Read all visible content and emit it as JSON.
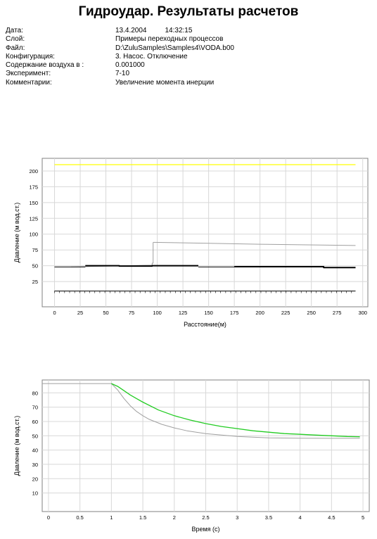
{
  "header": {
    "title": "Гидроудар. Результаты расчетов",
    "fields": [
      {
        "label": "Дата:",
        "value": "13.4.2004",
        "extra": "14:32:15"
      },
      {
        "label": "Слой:",
        "value": "Примеры переходных процессов"
      },
      {
        "label": "Файл:",
        "value": "D:\\ZuluSamples\\Samples4\\VODA.b00"
      },
      {
        "label": "Конфигурация:",
        "value": "3. Насос. Отключение"
      },
      {
        "label": "Содержание воздуха в :",
        "value": "0.001000"
      },
      {
        "label": "Эксперимент:",
        "value": "7-10"
      },
      {
        "label": "Комментарии:",
        "value": "Увеличение момента инерции"
      }
    ]
  },
  "chart_data": [
    {
      "type": "line",
      "xlabel": "Расстояние(м)",
      "ylabel": "Давление (м вод.ст.)",
      "xlim": [
        -12,
        305
      ],
      "ylim": [
        -15,
        220
      ],
      "xticks": [
        0,
        25,
        50,
        75,
        100,
        125,
        150,
        175,
        200,
        225,
        250,
        275,
        300
      ],
      "yticks": [
        25,
        50,
        75,
        100,
        125,
        150,
        175,
        200
      ],
      "grid": true,
      "series": [
        {
          "color": "#ffff00",
          "width": 1.2,
          "points": [
            [
              0,
              210
            ],
            [
              293,
              210
            ]
          ]
        },
        {
          "color": "#a0a0a0",
          "width": 1,
          "points": [
            [
              96,
              87
            ],
            [
              150,
              85.5
            ],
            [
              200,
              84
            ],
            [
              293,
              82
            ]
          ]
        },
        {
          "color": "#a0a0a0",
          "width": 1,
          "points": [
            [
              16,
              48
            ],
            [
              95,
              51
            ],
            [
              95,
              54
            ],
            [
              96,
              54
            ],
            [
              96,
              87
            ]
          ]
        },
        {
          "color": "#000000",
          "width": 1,
          "points": [
            [
              0,
              48
            ],
            [
              30,
              48
            ]
          ]
        },
        {
          "color": "#000000",
          "width": 2,
          "points": [
            [
              30,
              50
            ],
            [
              63,
              50
            ],
            [
              63,
              49.5
            ],
            [
              95,
              49.5
            ],
            [
              95,
              50
            ],
            [
              140,
              50
            ]
          ]
        },
        {
          "color": "#000000",
          "width": 1,
          "points": [
            [
              140,
              48
            ],
            [
              175,
              48
            ]
          ]
        },
        {
          "color": "#000000",
          "width": 2,
          "points": [
            [
              175,
              48.5
            ],
            [
              262,
              48.5
            ],
            [
              262,
              47
            ],
            [
              293,
              47
            ]
          ]
        },
        {
          "color": "#000000",
          "width": 1,
          "points": [
            [
              0,
              10
            ],
            [
              293,
              10
            ]
          ]
        }
      ],
      "ground_ticks": {
        "y": 10,
        "from": 0,
        "to": 293,
        "step": 4.9
      }
    },
    {
      "type": "line",
      "xlabel": "Время (с)",
      "ylabel": "Давление (м вод.ст.)",
      "xlim": [
        -0.1,
        5.1
      ],
      "ylim": [
        -3,
        89
      ],
      "xticks": [
        0,
        0.5,
        1,
        1.5,
        2,
        2.5,
        3,
        3.5,
        4,
        4.5,
        5
      ],
      "yticks": [
        10,
        20,
        30,
        40,
        50,
        60,
        70,
        80
      ],
      "grid": true,
      "series": [
        {
          "color": "#a0a0a0",
          "width": 1,
          "points": [
            [
              -0.1,
              86.5
            ],
            [
              1,
              86.5
            ],
            [
              1.1,
              82
            ],
            [
              1.2,
              76
            ],
            [
              1.3,
              71
            ],
            [
              1.4,
              67
            ],
            [
              1.5,
              64
            ],
            [
              1.6,
              61.5
            ],
            [
              1.8,
              58
            ],
            [
              2,
              55.5
            ],
            [
              2.2,
              53.5
            ],
            [
              2.5,
              51.5
            ],
            [
              3,
              49.5
            ],
            [
              3.5,
              48.5
            ],
            [
              4,
              48.3
            ],
            [
              4.5,
              48.2
            ],
            [
              4.95,
              48.2
            ]
          ]
        },
        {
          "color": "#22cc22",
          "width": 1.3,
          "points": [
            [
              1,
              86.5
            ],
            [
              1.1,
              84.5
            ],
            [
              1.2,
              81.5
            ],
            [
              1.3,
              78.5
            ],
            [
              1.4,
              76
            ],
            [
              1.5,
              73.5
            ],
            [
              1.75,
              68
            ],
            [
              2,
              64
            ],
            [
              2.25,
              61
            ],
            [
              2.5,
              58.5
            ],
            [
              2.75,
              56.5
            ],
            [
              3,
              55
            ],
            [
              3.25,
              53.5
            ],
            [
              3.5,
              52.5
            ],
            [
              3.75,
              51.5
            ],
            [
              4,
              51
            ],
            [
              4.25,
              50.5
            ],
            [
              4.5,
              50
            ],
            [
              4.75,
              49.5
            ],
            [
              4.95,
              49.3
            ]
          ]
        }
      ]
    }
  ]
}
